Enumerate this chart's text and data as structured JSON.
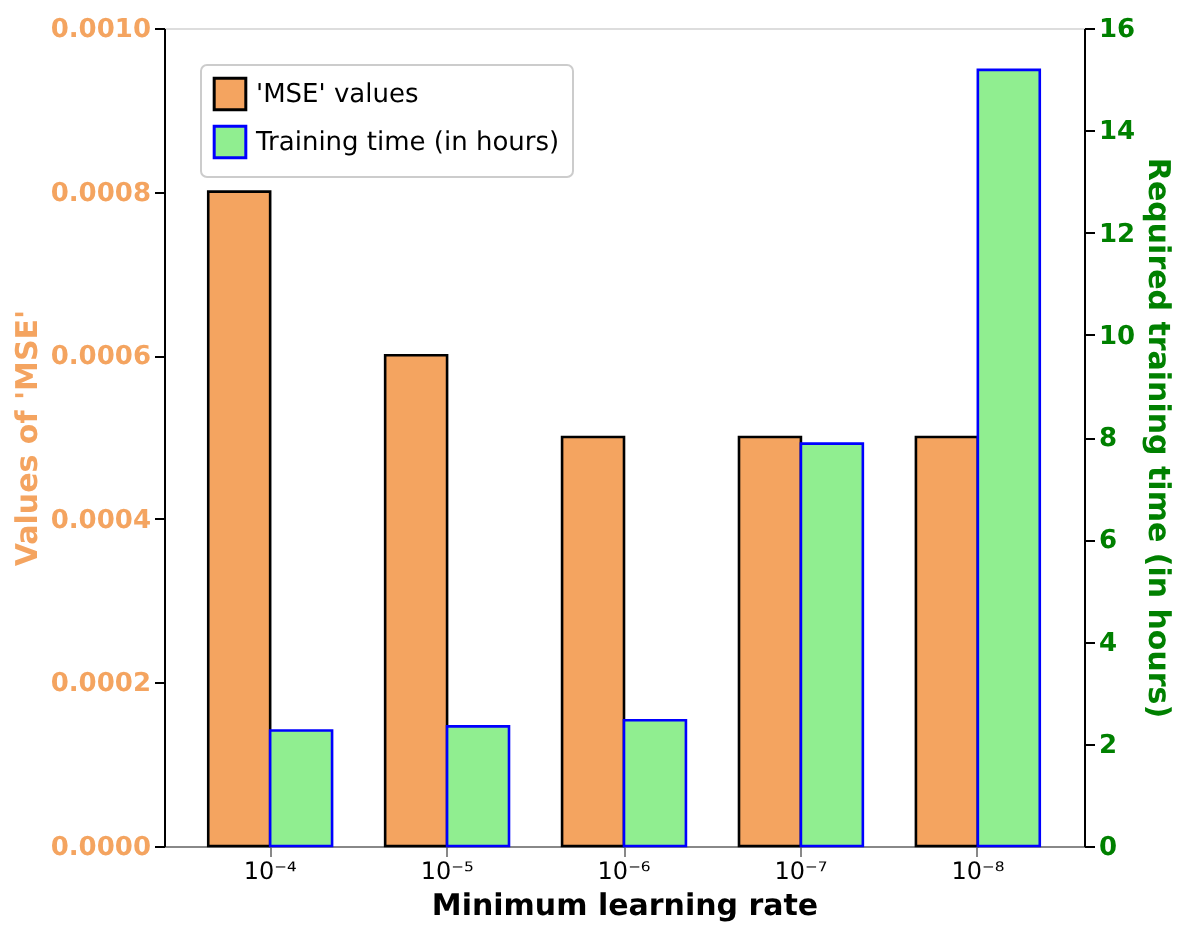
{
  "chart_data": {
    "type": "bar",
    "xlabel": "Minimum learning rate",
    "ylabel": "Values of  'MSE'",
    "y2label": "Required training time (in hours)",
    "categories": [
      "10⁻⁴",
      "10⁻⁵",
      "10⁻⁶",
      "10⁻⁷",
      "10⁻⁸"
    ],
    "series": [
      {
        "name": "'MSE' values",
        "color": "#f4a460",
        "values": [
          0.0008,
          0.0006,
          0.0005,
          0.0005,
          0.0005
        ]
      },
      {
        "name": "Training time (in hours)",
        "color": "#90ee90",
        "axis": "y2",
        "values": [
          2.26,
          2.34,
          2.46,
          7.87,
          15.18
        ]
      }
    ],
    "ylim": [
      0,
      0.001
    ],
    "yticks": [
      {
        "value": 0,
        "label": "0.0000"
      },
      {
        "value": 0.0002,
        "label": "0.0002"
      },
      {
        "value": 0.0004,
        "label": "0.0004"
      },
      {
        "value": 0.0006,
        "label": "0.0006"
      },
      {
        "value": 0.0008,
        "label": "0.0008"
      },
      {
        "value": 0.001,
        "label": "0.0010"
      }
    ],
    "y2lim": [
      0,
      16
    ],
    "y2ticks": [
      0,
      2,
      4,
      6,
      8,
      10,
      12,
      14,
      16
    ],
    "legend": "top left",
    "grid": false
  }
}
